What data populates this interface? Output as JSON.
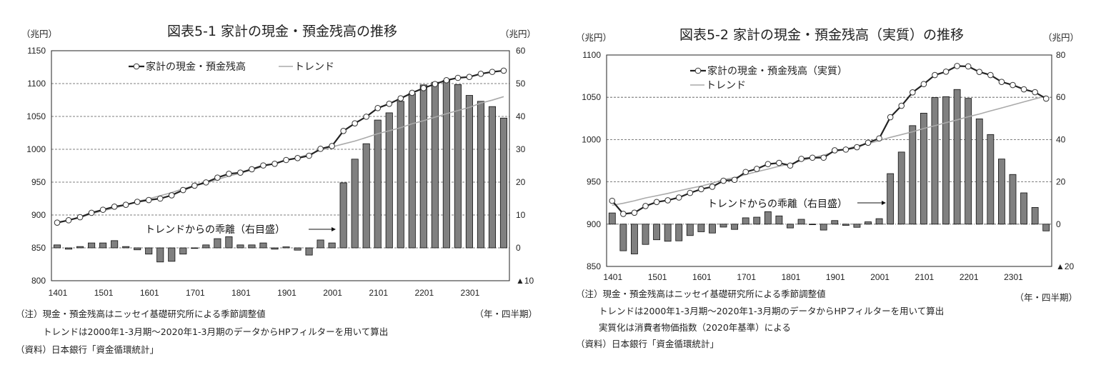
{
  "chart_data": [
    {
      "type": "bar+line",
      "title": "図表5-1  家計の現金・預金残高の推移",
      "ylabel_left": "（兆円）",
      "ylabel_right": "（兆円）",
      "ylim_left": [
        800,
        1150
      ],
      "yticks_left": [
        800,
        850,
        900,
        950,
        1000,
        1050,
        1100,
        1150
      ],
      "ylim_right": [
        -10,
        60
      ],
      "yticks_right": [
        {
          "value": -10,
          "label": "▲10"
        },
        {
          "value": 0,
          "label": "0"
        },
        {
          "value": 10,
          "label": "10"
        },
        {
          "value": 20,
          "label": "20"
        },
        {
          "value": 30,
          "label": "30"
        },
        {
          "value": 40,
          "label": "40"
        },
        {
          "value": 50,
          "label": "50"
        },
        {
          "value": 60,
          "label": "60"
        }
      ],
      "xtick_labels": [
        "1401",
        "1501",
        "1601",
        "1701",
        "1801",
        "1901",
        "2001",
        "2101",
        "2201",
        "2301"
      ],
      "xlabel": "（年・四半期）",
      "grid": true,
      "legend": {
        "placement": "top-left",
        "series_label": "家計の現金・預金残高",
        "trend_label": "トレンド"
      },
      "annotation": "トレンドからの乖離（右目盛）",
      "series": [
        {
          "name": "家計の現金・預金残高",
          "axis": "left",
          "kind": "line-marker",
          "values": [
            888.4,
            892,
            896.7,
            903.3,
            908,
            912.7,
            915.6,
            920,
            922.8,
            925,
            930,
            938,
            944.6,
            949.6,
            956.9,
            962.7,
            964.5,
            969.6,
            975.4,
            977.9,
            983.7,
            986.6,
            990.2,
            1000.7,
            1005,
            1027.9,
            1039.5,
            1049.6,
            1062.7,
            1069.2,
            1077.5,
            1085.9,
            1093.1,
            1099.3,
            1105.1,
            1108.7,
            1110.1,
            1114.9,
            1117.8,
            1119.6
          ]
        },
        {
          "name": "トレンド",
          "axis": "left",
          "kind": "line",
          "values": [
            887.5,
            892.4,
            896.3,
            901.8,
            906.5,
            910.5,
            915.2,
            920.6,
            924.7,
            929.3,
            934.1,
            939.9,
            944.6,
            948.7,
            954.1,
            959.3,
            963.6,
            968.7,
            973.9,
            978.3,
            983.4,
            987.3,
            992.4,
            998.3,
            1003.5,
            1008.1,
            1012.5,
            1017.9,
            1023.8,
            1028.1,
            1032.9,
            1038.9,
            1043.5,
            1048.9,
            1054.1,
            1059,
            1063.7,
            1070.3,
            1074.8,
            1080.1
          ]
        },
        {
          "name": "トレンドからの乖離",
          "axis": "right",
          "kind": "bar",
          "values": [
            0.9,
            -0.4,
            0.4,
            1.5,
            1.5,
            2.2,
            0.4,
            -0.6,
            -1.9,
            -4.3,
            -4.1,
            -1.9,
            0,
            0.9,
            2.8,
            3.4,
            0.9,
            0.9,
            1.5,
            -0.4,
            0.3,
            -0.7,
            -2.2,
            2.4,
            1.5,
            19.8,
            27,
            31.7,
            38.9,
            41.1,
            44.6,
            47,
            49.6,
            50.4,
            51,
            49.7,
            46.4,
            44.6,
            43,
            39.5
          ]
        }
      ],
      "notes": [
        "（注）現金・預金残高はニッセイ基礎研究所による季節調整値",
        "トレンドは2000年1-3月期～2020年1-3月期のデータからHPフィルターを用いて算出",
        "（資料）日本銀行「資金循環統計」"
      ]
    },
    {
      "type": "bar+line",
      "title": "図表5-2  家計の現金・預金残高（実質）の推移",
      "ylabel_left": "（兆円）",
      "ylabel_right": "（兆円）",
      "ylim_left": [
        850,
        1100
      ],
      "yticks_left": [
        850,
        900,
        950,
        1000,
        1050,
        1100
      ],
      "ylim_right": [
        -20,
        80
      ],
      "yticks_right": [
        {
          "value": -20,
          "label": "▲20"
        },
        {
          "value": 0,
          "label": "0"
        },
        {
          "value": 20,
          "label": "20"
        },
        {
          "value": 40,
          "label": "40"
        },
        {
          "value": 60,
          "label": "60"
        },
        {
          "value": 80,
          "label": "80"
        }
      ],
      "xtick_labels": [
        "1401",
        "1501",
        "1601",
        "1701",
        "1801",
        "1901",
        "2001",
        "2101",
        "2201",
        "2301"
      ],
      "xlabel": "（年・四半期）",
      "grid": true,
      "legend": {
        "placement": "top-left",
        "series_label": "家計の現金・預金残高（実質）",
        "trend_label": "トレンド"
      },
      "annotation": "トレンドからの乖離（右目盛）",
      "series": [
        {
          "name": "家計の現金・預金残高（実質）",
          "axis": "left",
          "kind": "line-marker",
          "values": [
            927.6,
            912.1,
            913.5,
            921.4,
            926.2,
            928.2,
            931.5,
            936.9,
            941.4,
            944.2,
            951.3,
            952.4,
            961.7,
            965.3,
            971,
            972.4,
            969.3,
            977.2,
            978.6,
            978.6,
            987.3,
            988.2,
            991,
            996.3,
            1001.4,
            1026.5,
            1040,
            1055.8,
            1065.6,
            1076.3,
            1080.3,
            1087,
            1086.5,
            1080,
            1076.3,
            1068.2,
            1064.5,
            1059.4,
            1056,
            1048.4
          ]
        },
        {
          "name": "トレンド",
          "axis": "left",
          "kind": "line",
          "values": [
            922.3,
            924.7,
            927.6,
            931,
            933.6,
            936.3,
            939.4,
            942.3,
            945,
            948.4,
            952.7,
            954.9,
            958.7,
            962,
            965.1,
            968.5,
            971.1,
            974.9,
            978.6,
            981.4,
            985.6,
            988.8,
            992.5,
            995.2,
            998.8,
            1002.6,
            1005.9,
            1009.2,
            1013.1,
            1016.4,
            1020,
            1023.3,
            1027,
            1030.2,
            1033.9,
            1037.4,
            1041,
            1044.6,
            1048.1,
            1051.6
          ]
        },
        {
          "name": "トレンドからの乖離",
          "axis": "right",
          "kind": "bar",
          "values": [
            5.3,
            -12.6,
            -14.1,
            -9.6,
            -7.4,
            -8.1,
            -7.9,
            -5.4,
            -3.6,
            -4.2,
            -1.4,
            -2.5,
            3,
            3.3,
            5.9,
            3.9,
            -1.8,
            2.3,
            0,
            -2.8,
            1.7,
            -0.6,
            -1.5,
            1.1,
            2.6,
            23.9,
            34.1,
            46.6,
            52.5,
            59.9,
            60.3,
            63.7,
            59.5,
            49.8,
            42.4,
            30.8,
            23.5,
            14.8,
            7.9,
            -3.2
          ]
        }
      ],
      "notes": [
        "（注）現金・預金残高はニッセイ基礎研究所による季節調整値",
        "トレンドは2000年1-3月期～2020年1-3月期のデータからHPフィルターを用いて算出",
        "実質化は消費者物価指数（2020年基準）による",
        "（資料）日本銀行「資金循環統計」"
      ]
    }
  ],
  "colors": {
    "bar": "#808080",
    "line": "#222222",
    "trend": "#aaaaaa",
    "grid": "#555555"
  }
}
